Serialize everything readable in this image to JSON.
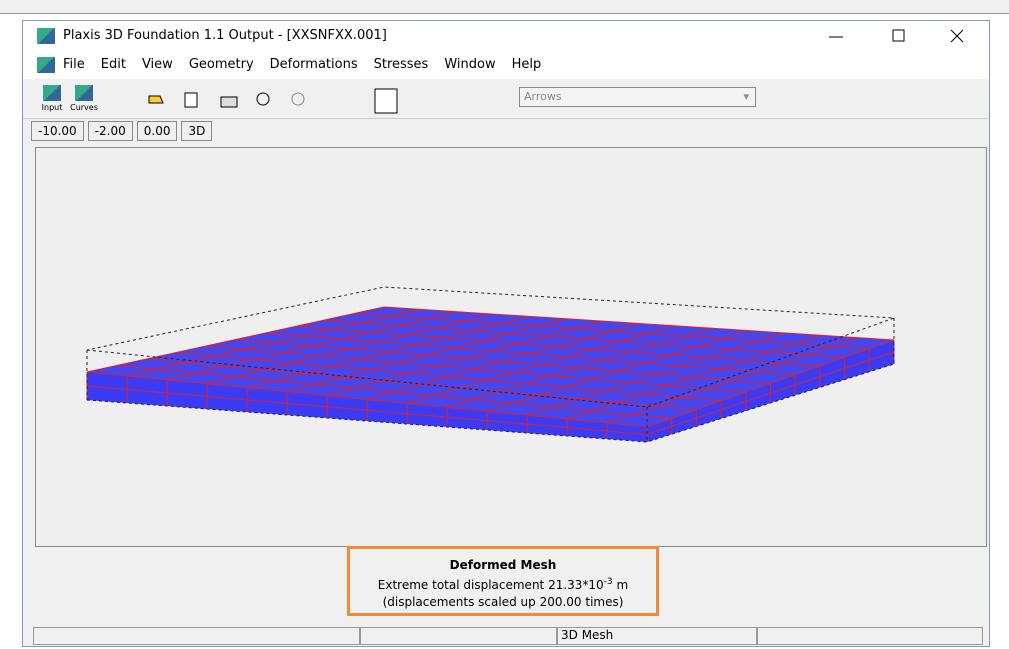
{
  "window": {
    "title": "Plaxis 3D Foundation 1.1 Output - [XXSNFXX.001]"
  },
  "menu": [
    "File",
    "Edit",
    "View",
    "Geometry",
    "Deformations",
    "Stresses",
    "Window",
    "Help"
  ],
  "toolbar": {
    "buttons": [
      "Input",
      "Curves"
    ],
    "dropdown": "Arrows"
  },
  "tabs": [
    "-10.00",
    "-2.00",
    "0.00",
    "3D"
  ],
  "caption": {
    "title": "Deformed Mesh",
    "line1": "Extreme total displacement 21.33*10",
    "exponent": "-3",
    "unit": "m",
    "line2": "(displacements scaled up 200.00 times)"
  },
  "status_bar": [
    "3D Mesh"
  ]
}
